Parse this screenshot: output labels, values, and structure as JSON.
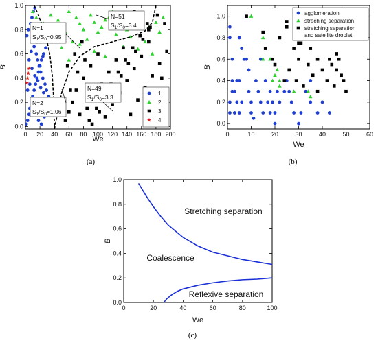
{
  "chart_data": [
    {
      "panel": "a",
      "type": "scatter",
      "caption": "(a)",
      "xlabel": "We",
      "ylabel": "B",
      "xlim": [
        0,
        200
      ],
      "ylim": [
        -0.02,
        1.0
      ],
      "xticks": [
        "0",
        "20",
        "40",
        "60",
        "80",
        "100",
        "120",
        "140",
        "160",
        "180",
        "200"
      ],
      "yticks": [
        "0.0",
        "0.2",
        "0.4",
        "0.6",
        "0.8",
        "1.0"
      ],
      "legend_position": "bottom-right",
      "series": [
        {
          "name": "1",
          "marker": "circle",
          "color": "#1f3fd1",
          "x": [
            1,
            3,
            5,
            6,
            8,
            10,
            12,
            14,
            16,
            18,
            20,
            22,
            25,
            28,
            30,
            2,
            4,
            7,
            9,
            11,
            13,
            15,
            17,
            19,
            21,
            24,
            27,
            29,
            32,
            35,
            3,
            6,
            10,
            14,
            18,
            22,
            26,
            30,
            8,
            12,
            16,
            20,
            24,
            5,
            9,
            13,
            17,
            21,
            25,
            30,
            34,
            38
          ],
          "y": [
            0.02,
            0.05,
            0.1,
            0.15,
            0.2,
            0.25,
            0.3,
            0.35,
            0.4,
            0.45,
            0.5,
            0.55,
            0.6,
            0.65,
            0.7,
            0.75,
            0.8,
            0.85,
            0.9,
            0.95,
            0.98,
            0.6,
            0.55,
            0.5,
            0.45,
            0.4,
            0.35,
            0.3,
            0.25,
            0.2,
            0.3,
            0.35,
            0.15,
            0.1,
            0.05,
            0.02,
            0.08,
            0.12,
            0.62,
            0.66,
            0.7,
            0.72,
            0.58,
            0.55,
            0.48,
            0.42,
            0.38,
            0.32,
            0.28,
            0.22,
            0.18,
            0.1
          ]
        },
        {
          "name": "2",
          "marker": "triangle",
          "color": "#2ed12e",
          "x": [
            10,
            15,
            25,
            30,
            35,
            45,
            50,
            55,
            60,
            70,
            75,
            80,
            90,
            95,
            100,
            105,
            110,
            115,
            120,
            130,
            140,
            150,
            160,
            170,
            180,
            190,
            40,
            65,
            85,
            125,
            145,
            165,
            185,
            20,
            50,
            75,
            95,
            135,
            155,
            175,
            60,
            110
          ],
          "y": [
            0.95,
            0.9,
            0.85,
            0.8,
            0.92,
            0.88,
            0.82,
            0.78,
            0.95,
            0.9,
            0.85,
            0.8,
            0.92,
            0.86,
            0.78,
            0.82,
            0.88,
            0.9,
            0.95,
            0.85,
            0.8,
            0.92,
            0.88,
            0.82,
            0.86,
            0.9,
            0.75,
            0.7,
            0.72,
            0.76,
            0.74,
            0.7,
            0.78,
            0.7,
            0.65,
            0.68,
            0.62,
            0.66,
            0.64,
            0.6,
            0.55,
            0.58
          ]
        },
        {
          "name": "3",
          "marker": "square",
          "color": "#000000",
          "x": [
            55,
            60,
            65,
            70,
            75,
            80,
            85,
            90,
            95,
            100,
            105,
            110,
            115,
            120,
            125,
            130,
            135,
            140,
            145,
            150,
            155,
            160,
            165,
            170,
            175,
            180,
            185,
            190,
            195,
            58,
            68,
            78,
            88,
            98,
            108,
            118,
            128,
            138,
            148,
            158,
            168,
            178,
            188,
            62,
            72,
            82,
            92,
            102,
            112,
            122,
            132,
            142,
            152,
            162,
            172,
            182,
            192,
            150,
            160,
            170
          ],
          "y": [
            0.05,
            0.12,
            0.2,
            0.3,
            0.1,
            0.4,
            0.15,
            0.5,
            0.25,
            0.6,
            0.35,
            0.08,
            0.45,
            0.18,
            0.55,
            0.28,
            0.65,
            0.38,
            0.1,
            0.48,
            0.22,
            0.58,
            0.32,
            0.7,
            0.42,
            0.12,
            0.52,
            0.26,
            0.62,
            0.5,
            0.6,
            0.7,
            0.05,
            0.15,
            0.25,
            0.35,
            0.45,
            0.55,
            0.65,
            0.75,
            0.85,
            0.2,
            0.4,
            0.3,
            0.45,
            0.55,
            0.02,
            0.12,
            0.22,
            0.32,
            0.42,
            0.52,
            0.62,
            0.72,
            0.82,
            0.92,
            0.85,
            0.95,
            0.9,
            0.8
          ]
        },
        {
          "name": "4",
          "marker": "star",
          "color": "#e02020",
          "x": [
            2,
            3,
            4,
            5
          ],
          "y": [
            0.36,
            0.4,
            0.44,
            0.48
          ]
        }
      ],
      "curves": [
        {
          "name": "boundary-left",
          "style": "dashed",
          "x": [
            12,
            18,
            24,
            30,
            34,
            37,
            39,
            40
          ],
          "y": [
            1.0,
            0.92,
            0.82,
            0.7,
            0.58,
            0.42,
            0.22,
            0.0
          ]
        },
        {
          "name": "boundary-middle",
          "style": "dashed",
          "x": [
            40,
            50,
            60,
            75,
            95,
            120,
            145,
            165,
            175,
            180
          ],
          "y": [
            -0.02,
            0.28,
            0.45,
            0.58,
            0.66,
            0.7,
            0.74,
            0.79,
            0.86,
            1.0
          ]
        }
      ],
      "annotations": [
        {
          "N": "N=1",
          "ratio_label": "S",
          "ratio_sub1": "1",
          "ratio_mid": "/S",
          "ratio_sub0": "0",
          "ratio_value": "=0.95"
        },
        {
          "N": "N=51",
          "ratio_label": "S",
          "ratio_sub1": "1",
          "ratio_mid": "/S",
          "ratio_sub0": "0",
          "ratio_value": "=3.4"
        },
        {
          "N": "N=2",
          "ratio_label": "S",
          "ratio_sub1": "1",
          "ratio_mid": "/S",
          "ratio_sub0": "0",
          "ratio_value": "=1.06"
        },
        {
          "N": "N=49",
          "ratio_label": "S",
          "ratio_sub1": "1",
          "ratio_mid": "/S",
          "ratio_sub0": "0",
          "ratio_value": "=3.3"
        }
      ]
    },
    {
      "panel": "b",
      "type": "scatter",
      "caption": "(b)",
      "xlabel": "We",
      "ylabel": "B",
      "xlim": [
        0,
        60
      ],
      "ylim": [
        -0.05,
        1.1
      ],
      "xticks": [
        "0",
        "10",
        "20",
        "30",
        "40",
        "50",
        "60"
      ],
      "yticks": [
        "0.0",
        "0.2",
        "0.4",
        "0.6",
        "0.8",
        "1.0"
      ],
      "legend_position": "top-right",
      "series": [
        {
          "name": "agglomeration",
          "marker": "circle",
          "color": "#1f3fd1",
          "x": [
            1,
            1,
            1,
            1,
            2,
            2,
            2,
            3,
            4,
            4,
            5,
            5,
            5,
            6,
            6,
            8,
            9,
            9,
            10,
            10,
            11,
            12,
            13,
            14,
            15,
            16,
            17,
            18,
            18,
            19,
            20,
            20,
            21,
            22,
            25,
            26,
            27,
            28,
            30,
            31,
            33,
            35,
            38,
            40,
            43,
            3,
            7,
            14,
            24,
            35
          ],
          "y": [
            0.9,
            0.8,
            0.2,
            0.1,
            0.6,
            0.4,
            0.3,
            0.1,
            0.4,
            0.2,
            0.8,
            0.4,
            0.1,
            0.7,
            0.2,
            0.6,
            0.5,
            0.3,
            0.2,
            0.1,
            0.05,
            0.4,
            0.3,
            0.2,
            0.1,
            0.4,
            0.2,
            0.1,
            0.3,
            0.2,
            0.0,
            0.1,
            0.3,
            0.2,
            0.4,
            0.3,
            0.2,
            0.1,
            0.0,
            0.1,
            0.3,
            0.2,
            0.1,
            0.2,
            0.1,
            0.3,
            0.6,
            0.6,
            0.3,
            0.4
          ]
        },
        {
          "name": "streching separation",
          "marker": "triangle",
          "color": "#2ed12e",
          "x": [
            10,
            15,
            15,
            18,
            19,
            20,
            21,
            22,
            22,
            28,
            34,
            35
          ],
          "y": [
            1.0,
            0.8,
            0.6,
            0.6,
            0.4,
            0.45,
            0.5,
            0.35,
            0.4,
            0.3,
            0.3,
            0.25
          ]
        },
        {
          "name": "stretching separation\nand satellite droplet",
          "marker": "square",
          "color": "#000000",
          "x": [
            8,
            15,
            16,
            19,
            20,
            22,
            24,
            25,
            26,
            28,
            29,
            30,
            31,
            32,
            33,
            34,
            35,
            36,
            37,
            38,
            38,
            40,
            42,
            43,
            44,
            45,
            46,
            46,
            47,
            48,
            49,
            50,
            25,
            30
          ],
          "y": [
            1.0,
            0.85,
            0.7,
            0.6,
            0.55,
            0.8,
            0.4,
            0.9,
            0.5,
            0.7,
            0.4,
            0.6,
            0.75,
            0.35,
            0.85,
            0.55,
            0.7,
            0.45,
            0.9,
            0.6,
            0.3,
            0.5,
            0.4,
            0.6,
            0.55,
            0.35,
            0.65,
            0.5,
            0.6,
            0.45,
            0.4,
            0.3,
            0.95,
            0.75
          ]
        }
      ]
    },
    {
      "panel": "c",
      "type": "line",
      "caption": "(c)",
      "xlabel": "We",
      "ylabel": "B",
      "xlim": [
        0,
        100
      ],
      "ylim": [
        0,
        1.0
      ],
      "xticks": [
        "0",
        "20",
        "40",
        "60",
        "80",
        "100"
      ],
      "yticks": [
        "0.0",
        "0.2",
        "0.4",
        "0.6",
        "0.8",
        "1.0"
      ],
      "series": [
        {
          "name": "upper",
          "color": "#1a2fd6",
          "x": [
            10,
            15,
            20,
            25,
            30,
            40,
            50,
            60,
            70,
            80,
            90,
            100
          ],
          "y": [
            0.97,
            0.87,
            0.78,
            0.7,
            0.63,
            0.53,
            0.46,
            0.41,
            0.38,
            0.35,
            0.33,
            0.31
          ]
        },
        {
          "name": "lower",
          "color": "#1a2fd6",
          "x": [
            27,
            29,
            32,
            36,
            40,
            50,
            60,
            70,
            80,
            90,
            100
          ],
          "y": [
            0.0,
            0.03,
            0.06,
            0.09,
            0.11,
            0.14,
            0.16,
            0.175,
            0.185,
            0.19,
            0.2
          ]
        }
      ],
      "annotations": [
        "Stretching separation",
        "Coalescence",
        "Reflexive separation"
      ]
    }
  ]
}
